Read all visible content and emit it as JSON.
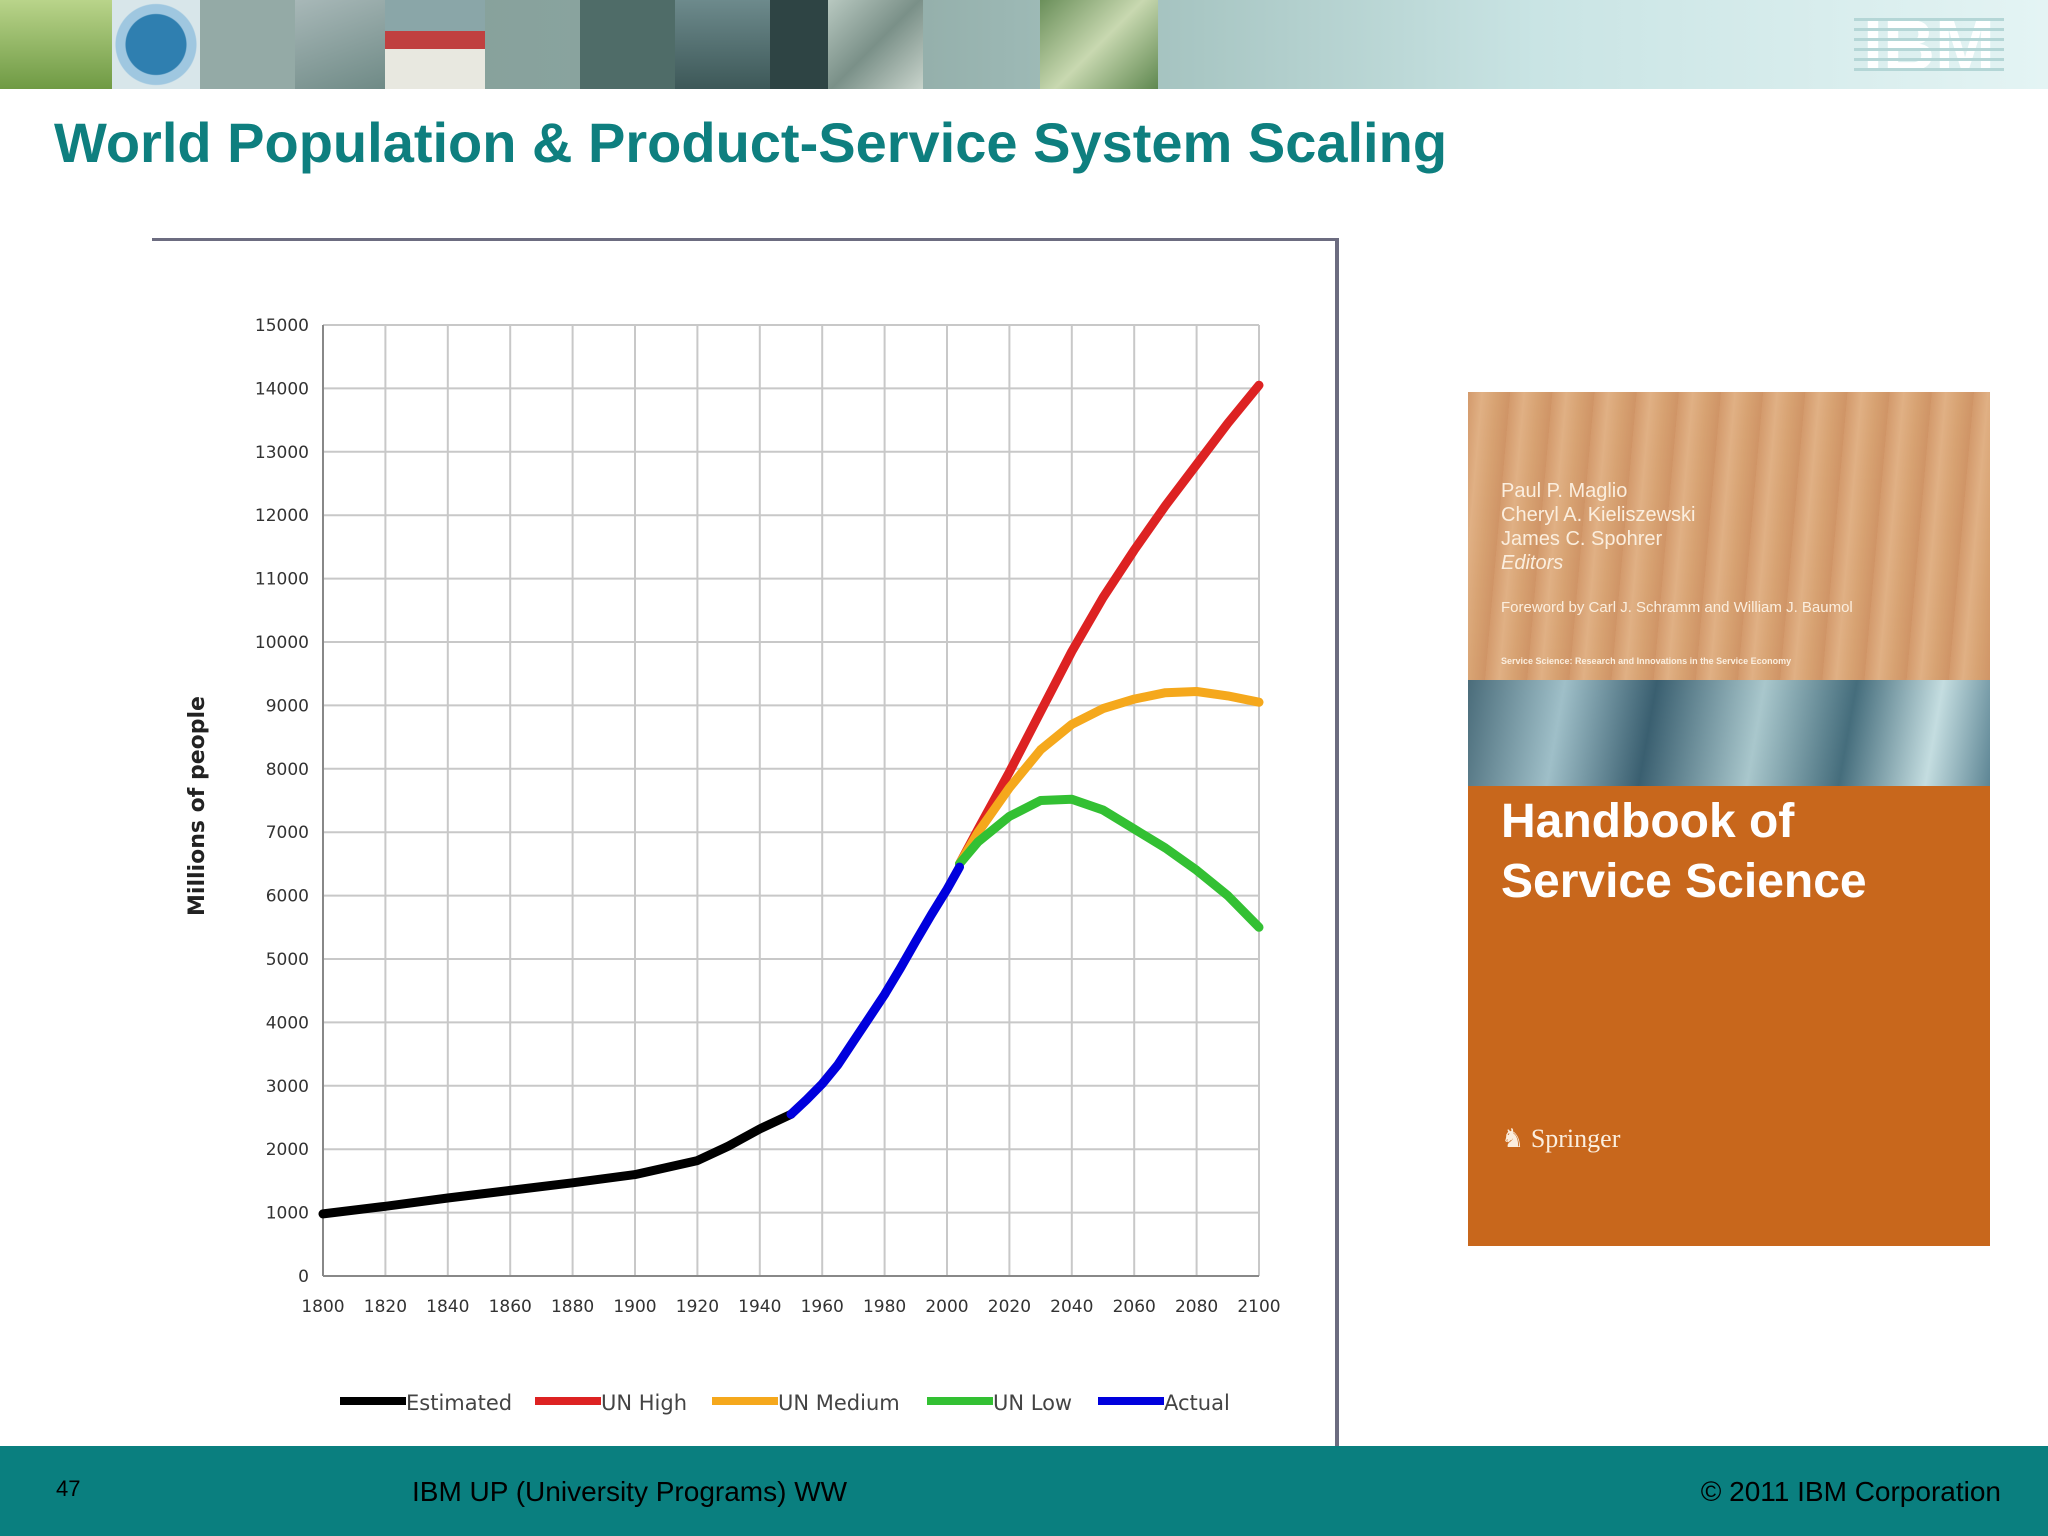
{
  "header": {
    "logo_text": "IBM",
    "colors": {
      "strip": "#8da7a2",
      "logo": "#ffffff"
    }
  },
  "slide_title": "World Population & Product-Service System Scaling",
  "chart_data": {
    "type": "line",
    "title": "",
    "xlabel": "",
    "ylabel": "Millions of people",
    "xlim": [
      1800,
      2100
    ],
    "ylim": [
      0,
      15000
    ],
    "x_ticks": [
      1800,
      1820,
      1840,
      1860,
      1880,
      1900,
      1920,
      1940,
      1960,
      1980,
      2000,
      2020,
      2040,
      2060,
      2080,
      2100
    ],
    "y_ticks": [
      0,
      1000,
      2000,
      3000,
      4000,
      5000,
      6000,
      7000,
      8000,
      9000,
      10000,
      11000,
      12000,
      13000,
      14000,
      15000
    ],
    "grid": true,
    "legend": "bottom",
    "series": [
      {
        "name": "Estimated",
        "color": "#000000",
        "points": [
          [
            1800,
            980
          ],
          [
            1820,
            1100
          ],
          [
            1840,
            1230
          ],
          [
            1860,
            1350
          ],
          [
            1880,
            1470
          ],
          [
            1900,
            1600
          ],
          [
            1920,
            1820
          ],
          [
            1930,
            2050
          ],
          [
            1940,
            2320
          ],
          [
            1950,
            2550
          ]
        ]
      },
      {
        "name": "UN High",
        "color": "#dd2222",
        "points": [
          [
            2004,
            6500
          ],
          [
            2010,
            7050
          ],
          [
            2020,
            7950
          ],
          [
            2030,
            8900
          ],
          [
            2040,
            9850
          ],
          [
            2050,
            10700
          ],
          [
            2060,
            11450
          ],
          [
            2070,
            12150
          ],
          [
            2080,
            12800
          ],
          [
            2090,
            13450
          ],
          [
            2100,
            14050
          ]
        ]
      },
      {
        "name": "UN Medium",
        "color": "#f5a81c",
        "points": [
          [
            2004,
            6500
          ],
          [
            2010,
            7000
          ],
          [
            2020,
            7700
          ],
          [
            2030,
            8300
          ],
          [
            2040,
            8700
          ],
          [
            2050,
            8950
          ],
          [
            2060,
            9100
          ],
          [
            2070,
            9200
          ],
          [
            2080,
            9220
          ],
          [
            2090,
            9150
          ],
          [
            2100,
            9050
          ]
        ]
      },
      {
        "name": "UN Low",
        "color": "#33c033",
        "points": [
          [
            2004,
            6500
          ],
          [
            2010,
            6850
          ],
          [
            2020,
            7250
          ],
          [
            2030,
            7500
          ],
          [
            2040,
            7520
          ],
          [
            2050,
            7350
          ],
          [
            2060,
            7050
          ],
          [
            2070,
            6750
          ],
          [
            2080,
            6400
          ],
          [
            2090,
            6000
          ],
          [
            2100,
            5500
          ]
        ]
      },
      {
        "name": "Actual",
        "color": "#0000dd",
        "points": [
          [
            1950,
            2550
          ],
          [
            1955,
            2780
          ],
          [
            1960,
            3030
          ],
          [
            1965,
            3330
          ],
          [
            1970,
            3700
          ],
          [
            1975,
            4070
          ],
          [
            1980,
            4440
          ],
          [
            1985,
            4850
          ],
          [
            1990,
            5280
          ],
          [
            1995,
            5700
          ],
          [
            2000,
            6100
          ],
          [
            2004,
            6450
          ]
        ]
      }
    ]
  },
  "book": {
    "authors": [
      "Paul P. Maglio",
      "Cheryl A. Kieliszewski",
      "James C. Spohrer"
    ],
    "editors_label": "Editors",
    "foreword": "Foreword by Carl J. Schramm and William J. Baumol",
    "series_line": "Service Science: Research and Innovations in the Service Economy",
    "title_line1": "Handbook of",
    "title_line2": "Service Science",
    "publisher": "Springer",
    "colors": {
      "cover": "#c8671c",
      "wood": "#d9a678",
      "wave": "#4a6c7a"
    }
  },
  "footer": {
    "page_number": "47",
    "center_text": "IBM UP (University Programs) WW",
    "copyright": "© 2011 IBM Corporation",
    "color": "#0a7f7f"
  }
}
